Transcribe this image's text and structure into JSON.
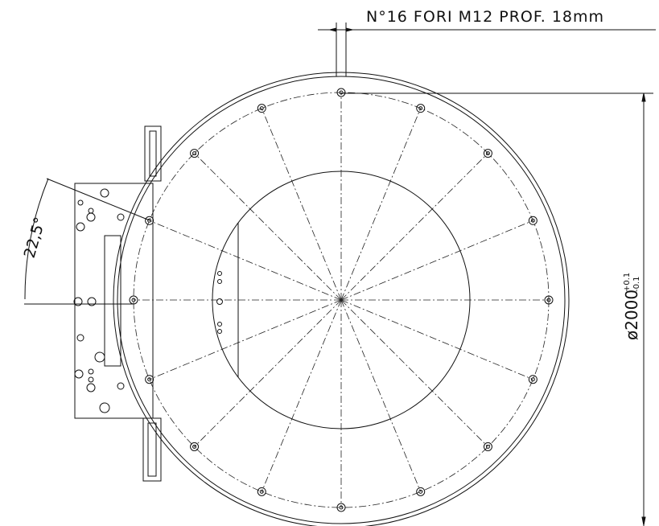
{
  "annotations": {
    "holes": "N°16 FORI M12 PROF. 18mm",
    "angle": "22,5°",
    "diameter": "ø2000",
    "tol_upper": "+0.1",
    "tol_lower": "-0.1"
  }
}
